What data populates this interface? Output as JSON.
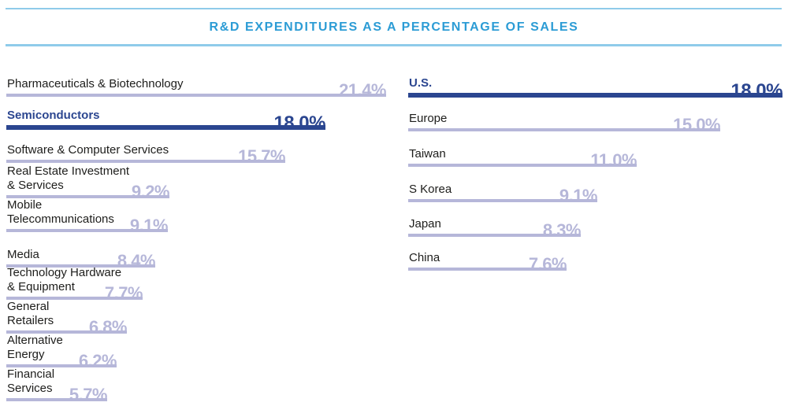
{
  "header": {
    "title": "R&D EXPENDITURES AS A PERCENTAGE OF SALES"
  },
  "colors": {
    "title_blue": "#2C9CD5",
    "rule_blue": "#8FCBEA",
    "highlight_navy": "#2B4690",
    "bar_lavender": "#B6B7D9",
    "label_dark": "#1D1D1B"
  },
  "chart_data": {
    "type": "bar",
    "orientation": "horizontal",
    "title": "R&D EXPENDITURES AS A PERCENTAGE OF SALES",
    "unit": "% of sales",
    "grid": false,
    "legend": null,
    "groups": [
      {
        "name": "industries",
        "axis_max": 21.4,
        "categories": [
          "Pharmaceuticals & Biotechnology",
          "Semiconductors",
          "Software & Computer Services",
          "Real Estate Investment & Services",
          "Mobile Telecommunications",
          "Media",
          "Technology Hardware & Equipment",
          "General Retailers",
          "Alternative Energy",
          "Financial Services"
        ],
        "values": [
          21.4,
          18.0,
          15.7,
          9.2,
          9.1,
          8.4,
          7.7,
          6.8,
          6.2,
          5.7
        ],
        "items": [
          {
            "lines": [
              "Pharmaceuticals & Biotechnology"
            ],
            "value": 21.4,
            "display": "21.4%",
            "highlight": false
          },
          {
            "lines": [
              "Semiconductors"
            ],
            "value": 18.0,
            "display": "18.0%",
            "highlight": true
          },
          {
            "lines": [
              "Software & Computer Services"
            ],
            "value": 15.7,
            "display": "15.7%",
            "highlight": false
          },
          {
            "lines": [
              "Real Estate Investment",
              "& Services"
            ],
            "value": 9.2,
            "display": "9.2%",
            "highlight": false
          },
          {
            "lines": [
              "Mobile",
              "Telecommunications"
            ],
            "value": 9.1,
            "display": "9.1%",
            "highlight": false
          },
          {
            "lines": [
              "Media"
            ],
            "value": 8.4,
            "display": "8.4%",
            "highlight": false
          },
          {
            "lines": [
              "Technology Hardware",
              "& Equipment"
            ],
            "value": 7.7,
            "display": "7.7%",
            "highlight": false
          },
          {
            "lines": [
              "General",
              "Retailers"
            ],
            "value": 6.8,
            "display": "6.8%",
            "highlight": false
          },
          {
            "lines": [
              "Alternative",
              "Energy"
            ],
            "value": 6.2,
            "display": "6.2%",
            "highlight": false
          },
          {
            "lines": [
              "Financial",
              "Services"
            ],
            "value": 5.7,
            "display": "5.7%",
            "highlight": false
          }
        ]
      },
      {
        "name": "regions",
        "axis_max": 18.0,
        "categories": [
          "U.S.",
          "Europe",
          "Taiwan",
          "S Korea",
          "Japan",
          "China"
        ],
        "values": [
          18.0,
          15.0,
          11.0,
          9.1,
          8.3,
          7.6
        ],
        "items": [
          {
            "lines": [
              "U.S."
            ],
            "value": 18.0,
            "display": "18.0%",
            "highlight": true
          },
          {
            "lines": [
              "Europe"
            ],
            "value": 15.0,
            "display": "15.0%",
            "highlight": false
          },
          {
            "lines": [
              "Taiwan"
            ],
            "value": 11.0,
            "display": "11.0%",
            "highlight": false
          },
          {
            "lines": [
              "S Korea"
            ],
            "value": 9.1,
            "display": "9.1%",
            "highlight": false
          },
          {
            "lines": [
              "Japan"
            ],
            "value": 8.3,
            "display": "8.3%",
            "highlight": false
          },
          {
            "lines": [
              "China"
            ],
            "value": 7.6,
            "display": "7.6%",
            "highlight": false
          }
        ]
      }
    ]
  }
}
